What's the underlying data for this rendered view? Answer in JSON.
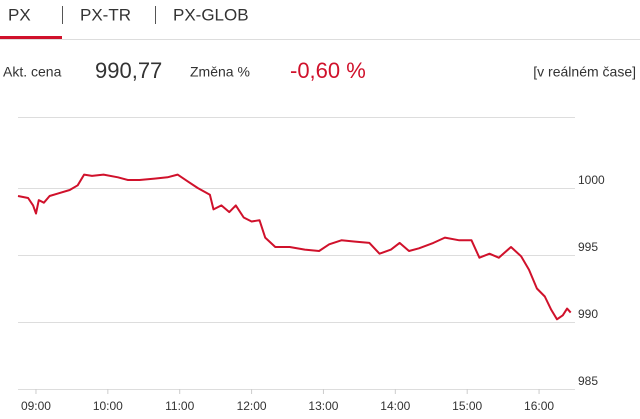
{
  "tabs": [
    "PX",
    "PX-TR",
    "PX-GLOB"
  ],
  "quote": {
    "price_label": "Akt. cena",
    "price": "990,77",
    "change_label": "Změna %",
    "change": "-0,60 %",
    "realtime": "[v reálném čase]"
  },
  "chart_data": {
    "type": "line",
    "color": "#d0112b",
    "grid": true,
    "x": [
      8.75,
      8.89,
      8.96,
      9.0,
      9.04,
      9.11,
      9.19,
      9.31,
      9.47,
      9.58,
      9.67,
      9.78,
      9.94,
      10.14,
      10.28,
      10.44,
      10.65,
      10.83,
      10.97,
      11.11,
      11.25,
      11.42,
      11.47,
      11.58,
      11.69,
      11.78,
      11.89,
      12.0,
      12.11,
      12.19,
      12.33,
      12.53,
      12.74,
      12.94,
      13.08,
      13.25,
      13.44,
      13.64,
      13.78,
      13.94,
      14.06,
      14.19,
      14.33,
      14.53,
      14.69,
      14.89,
      15.06,
      15.17,
      15.31,
      15.44,
      15.61,
      15.75,
      15.86,
      15.97,
      16.08,
      16.17,
      16.25,
      16.33,
      16.39,
      16.44
    ],
    "values": [
      999.4,
      999.25,
      998.7,
      998.1,
      999.1,
      998.9,
      999.4,
      999.6,
      999.85,
      1000.2,
      1001.0,
      1000.9,
      1001.0,
      1000.8,
      1000.6,
      1000.6,
      1000.7,
      1000.8,
      1001.0,
      1000.5,
      1000.0,
      999.5,
      998.4,
      998.7,
      998.2,
      998.7,
      997.8,
      997.5,
      997.6,
      996.3,
      995.6,
      995.6,
      995.4,
      995.3,
      995.8,
      996.1,
      996.0,
      995.9,
      995.1,
      995.4,
      995.9,
      995.3,
      995.5,
      995.9,
      996.3,
      996.1,
      996.1,
      994.8,
      995.1,
      994.8,
      995.6,
      994.9,
      993.9,
      992.5,
      991.9,
      990.9,
      990.2,
      990.5,
      991.0,
      990.7
    ],
    "xlim": [
      8.75,
      16.5
    ],
    "xticks": [
      {
        "value": 9,
        "label": "09:00"
      },
      {
        "value": 10,
        "label": "10:00"
      },
      {
        "value": 11,
        "label": "11:00"
      },
      {
        "value": 12,
        "label": "12:00"
      },
      {
        "value": 13,
        "label": "13:00"
      },
      {
        "value": 14,
        "label": "14:00"
      },
      {
        "value": 15,
        "label": "15:00"
      },
      {
        "value": 16,
        "label": "16:00"
      }
    ],
    "ylim": [
      985,
      1005
    ],
    "yticks": [
      985,
      990,
      995,
      1000
    ]
  }
}
